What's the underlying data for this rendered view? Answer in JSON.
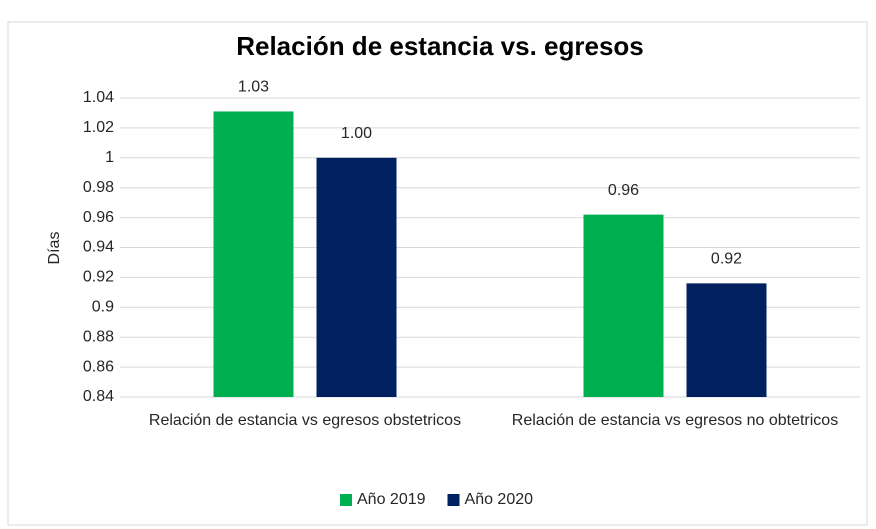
{
  "chart_data": {
    "type": "bar",
    "title": "Relación de estancia vs. egresos",
    "y_label": "Días",
    "categories": [
      "Relación de estancia vs  egresos obstetricos",
      "Relación de estancia vs  egresos no obtetricos"
    ],
    "series": [
      {
        "name": "Año 2019",
        "color": "#00b050",
        "values": [
          1.031,
          0.962
        ],
        "value_labels": [
          "1.03",
          "0.96"
        ]
      },
      {
        "name": "Año 2020",
        "color": "#002060",
        "values": [
          1.0,
          0.916
        ],
        "value_labels": [
          "1.00",
          "0.92"
        ]
      }
    ],
    "ylim": [
      0.84,
      1.04
    ],
    "yticks": [
      0.84,
      0.86,
      0.88,
      0.9,
      0.92,
      0.94,
      0.96,
      0.98,
      1,
      1.02,
      1.04
    ],
    "grid": true,
    "legend": "bottom"
  }
}
